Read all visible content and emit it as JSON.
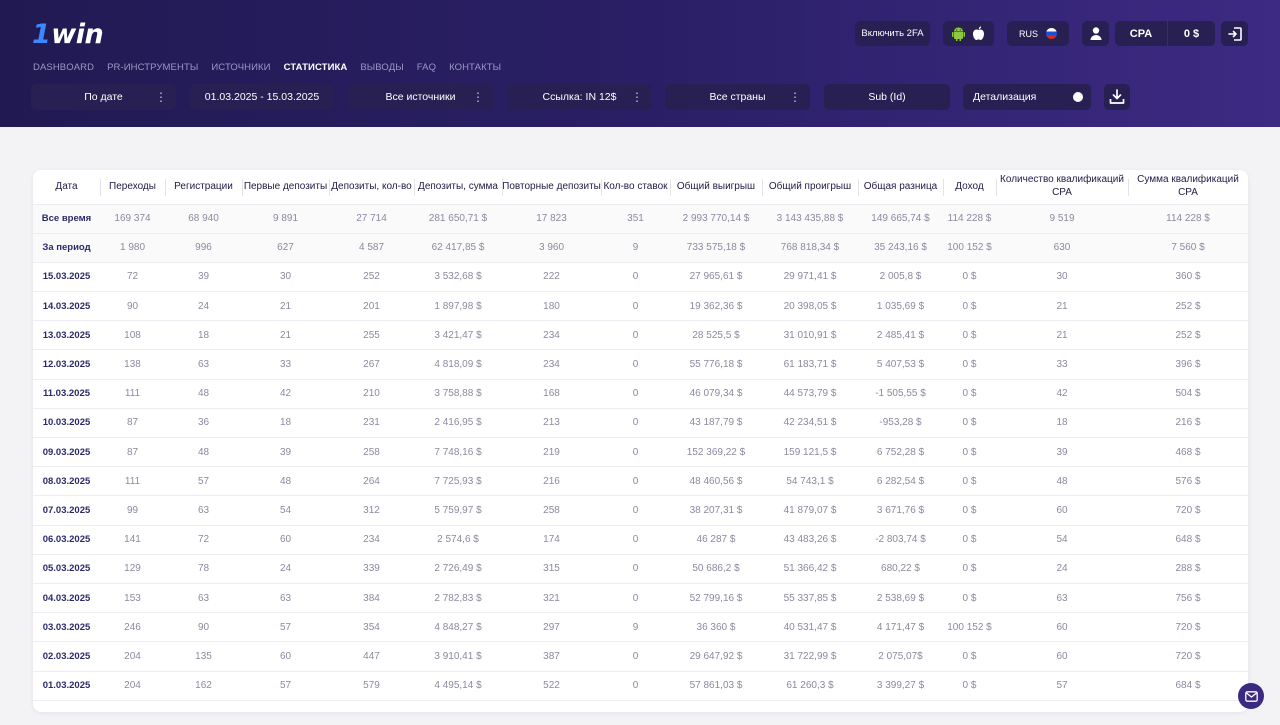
{
  "brand": {
    "logo_digit": "1",
    "logo_text": "win"
  },
  "nav": [
    {
      "label": "DASHBOARD",
      "active": false
    },
    {
      "label": "PR-ИНСТРУМЕНТЫ",
      "active": false
    },
    {
      "label": "ИСТОЧНИКИ",
      "active": false
    },
    {
      "label": "СТАТИСТИКА",
      "active": true
    },
    {
      "label": "ВЫВОДЫ",
      "active": false
    },
    {
      "label": "FAQ",
      "active": false
    },
    {
      "label": "КОНТАКТЫ",
      "active": false
    }
  ],
  "topbar": {
    "two_fa_label": "Включить 2FA",
    "language": "RUS",
    "cpa_label": "CPA",
    "balance": "0 $",
    "icons": [
      "android-icon",
      "apple-icon",
      "user-icon",
      "logout-icon"
    ]
  },
  "filters": {
    "group_by": "По дате",
    "date_range": "01.03.2025 - 15.03.2025",
    "sources": "Все источники",
    "link": "Ссылка: IN 12$",
    "countries": "Все страны",
    "sub_id": "Sub (Id)",
    "detail_label": "Детализация",
    "detail_enabled": true
  },
  "colors": {
    "header_start": "#211a52",
    "header_end": "#3d2a83",
    "button_bg": "#282052",
    "accent_blue": "#3d88ff"
  },
  "table": {
    "columns": [
      "Дата",
      "Переходы",
      "Регистрации",
      "Первые депозиты",
      "Депозиты, кол-во",
      "Депозиты, сумма",
      "Повторные депозиты",
      "Кол-во ставок",
      "Общий выигрыш",
      "Общий проигрыш",
      "Общая разница",
      "Доход",
      "Количество квалификаций CPA",
      "Сумма квалификаций CPA"
    ],
    "summary": [
      [
        "Все время",
        "169 374",
        "68 940",
        "9 891",
        "27 714",
        "281 650,71 $",
        "17 823",
        "351",
        "2 993 770,14 $",
        "3 143 435,88 $",
        "149 665,74 $",
        "114 228 $",
        "9 519",
        "114 228 $"
      ],
      [
        "За период",
        "1 980",
        "996",
        "627",
        "4 587",
        "62 417,85 $",
        "3 960",
        "9",
        "733 575,18 $",
        "768 818,34 $",
        "35 243,16 $",
        "100 152 $",
        "630",
        "7 560 $"
      ]
    ],
    "rows": [
      [
        "15.03.2025",
        "72",
        "39",
        "30",
        "252",
        "3 532,68 $",
        "222",
        "0",
        "27 965,61 $",
        "29 971,41 $",
        "2 005,8 $",
        "0 $",
        "30",
        "360 $"
      ],
      [
        "14.03.2025",
        "90",
        "24",
        "21",
        "201",
        "1 897,98 $",
        "180",
        "0",
        "19 362,36 $",
        "20 398,05 $",
        "1 035,69 $",
        "0 $",
        "21",
        "252 $"
      ],
      [
        "13.03.2025",
        "108",
        "18",
        "21",
        "255",
        "3 421,47 $",
        "234",
        "0",
        "28 525,5 $",
        "31 010,91 $",
        "2 485,41 $",
        "0 $",
        "21",
        "252 $"
      ],
      [
        "12.03.2025",
        "138",
        "63",
        "33",
        "267",
        "4 818,09 $",
        "234",
        "0",
        "55 776,18 $",
        "61 183,71 $",
        "5 407,53 $",
        "0 $",
        "33",
        "396 $"
      ],
      [
        "11.03.2025",
        "111",
        "48",
        "42",
        "210",
        "3 758,88 $",
        "168",
        "0",
        "46 079,34 $",
        "44 573,79 $",
        "-1 505,55 $",
        "0 $",
        "42",
        "504 $"
      ],
      [
        "10.03.2025",
        "87",
        "36",
        "18",
        "231",
        "2 416,95 $",
        "213",
        "0",
        "43 187,79 $",
        "42 234,51 $",
        "-953,28 $",
        "0 $",
        "18",
        "216 $"
      ],
      [
        "09.03.2025",
        "87",
        "48",
        "39",
        "258",
        "7 748,16 $",
        "219",
        "0",
        "152 369,22 $",
        "159 121,5 $",
        "6 752,28 $",
        "0 $",
        "39",
        "468 $"
      ],
      [
        "08.03.2025",
        "111",
        "57",
        "48",
        "264",
        "7 725,93 $",
        "216",
        "0",
        "48 460,56 $",
        "54 743,1 $",
        "6 282,54 $",
        "0 $",
        "48",
        "576 $"
      ],
      [
        "07.03.2025",
        "99",
        "63",
        "54",
        "312",
        "5 759,97 $",
        "258",
        "0",
        "38 207,31 $",
        "41 879,07 $",
        "3 671,76 $",
        "0 $",
        "60",
        "720 $"
      ],
      [
        "06.03.2025",
        "141",
        "72",
        "60",
        "234",
        "2 574,6 $",
        "174",
        "0",
        "46 287 $",
        "43 483,26 $",
        "-2 803,74 $",
        "0 $",
        "54",
        "648 $"
      ],
      [
        "05.03.2025",
        "129",
        "78",
        "24",
        "339",
        "2 726,49 $",
        "315",
        "0",
        "50 686,2 $",
        "51 366,42 $",
        "680,22 $",
        "0 $",
        "24",
        "288 $"
      ],
      [
        "04.03.2025",
        "153",
        "63",
        "63",
        "384",
        "2 782,83 $",
        "321",
        "0",
        "52 799,16 $",
        "55 337,85 $",
        "2 538,69 $",
        "0 $",
        "63",
        "756 $"
      ],
      [
        "03.03.2025",
        "246",
        "90",
        "57",
        "354",
        "4 848,27 $",
        "297",
        "9",
        "36 360 $",
        "40 531,47 $",
        "4 171,47 $",
        "100 152 $",
        "60",
        "720 $"
      ],
      [
        "02.03.2025",
        "204",
        "135",
        "60",
        "447",
        "3 910,41 $",
        "387",
        "0",
        "29 647,92 $",
        "31 722,99 $",
        "2 075,07$",
        "0 $",
        "60",
        "720 $"
      ],
      [
        "01.03.2025",
        "204",
        "162",
        "57",
        "579",
        "4 495,14 $",
        "522",
        "0",
        "57 861,03 $",
        "61 260,3 $",
        "3 399,27 $",
        "0 $",
        "57",
        "684 $"
      ]
    ]
  }
}
